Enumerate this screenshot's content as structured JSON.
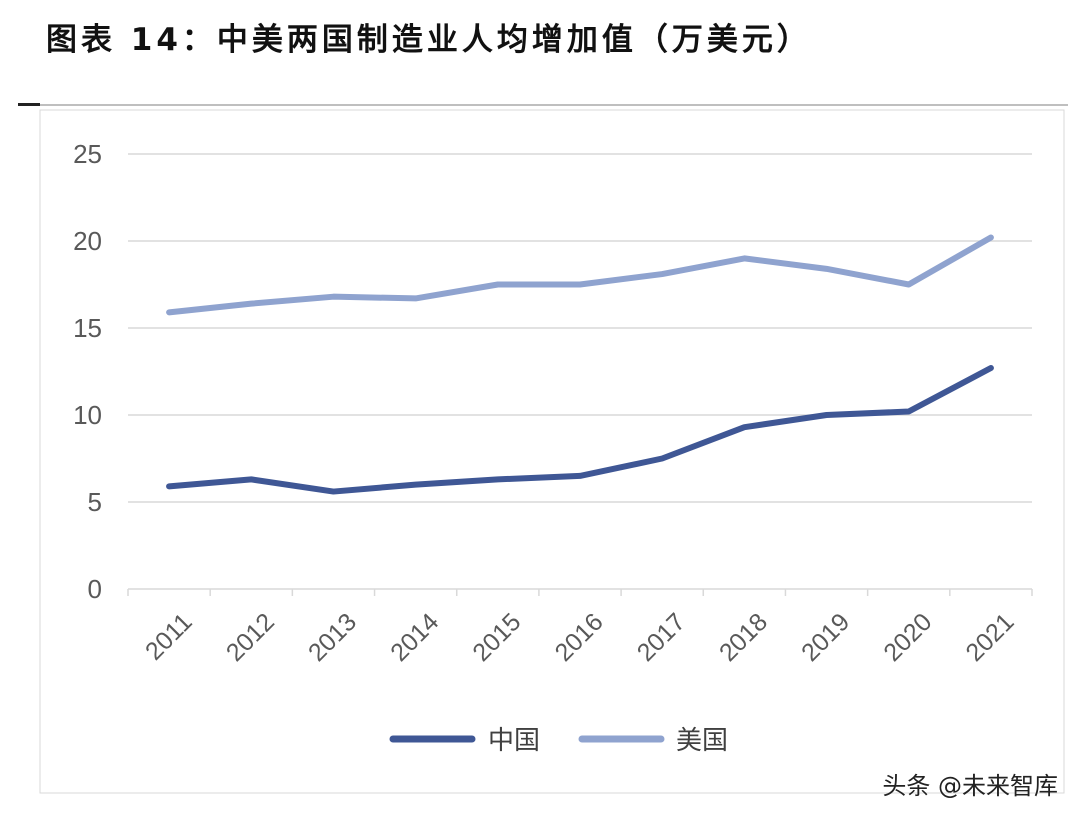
{
  "title": "图表 14：中美两国制造业人均增加值（万美元）",
  "watermark": "头条 @未来智库",
  "colors": {
    "china": "#3f5795",
    "usa": "#8fa3cf",
    "grid": "#d9d9d9"
  },
  "chart_data": {
    "type": "line",
    "x": [
      "2011",
      "2012",
      "2013",
      "2014",
      "2015",
      "2016",
      "2017",
      "2018",
      "2019",
      "2020",
      "2021"
    ],
    "ylim": [
      0,
      25
    ],
    "yticks": [
      0,
      5,
      10,
      15,
      20,
      25
    ],
    "grid": true,
    "legend_position": "bottom",
    "series": [
      {
        "name": "中国",
        "values": [
          5.9,
          6.3,
          5.6,
          6.0,
          6.3,
          6.5,
          7.5,
          9.3,
          10.0,
          10.2,
          12.7
        ]
      },
      {
        "name": "美国",
        "values": [
          15.9,
          16.4,
          16.8,
          16.7,
          17.5,
          17.5,
          18.1,
          19.0,
          18.4,
          17.5,
          20.2
        ]
      }
    ]
  }
}
